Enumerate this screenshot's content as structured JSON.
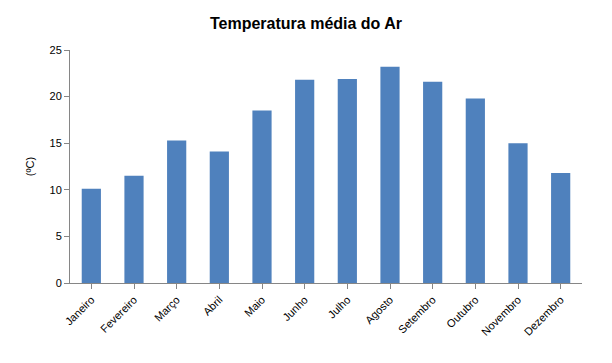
{
  "chart_data": {
    "type": "bar",
    "title": "Temperatura média do Ar",
    "y_label": "(ºC)",
    "categories": [
      "Janeiro",
      "Fevereiro",
      "Março",
      "Abril",
      "Maio",
      "Junho",
      "Julho",
      "Agosto",
      "Setembro",
      "Outubro",
      "Novembro",
      "Dezembro"
    ],
    "values": [
      10.1,
      11.5,
      15.3,
      14.1,
      18.5,
      21.8,
      21.9,
      23.2,
      21.6,
      19.8,
      15.0,
      11.8
    ],
    "color": "#4f81bd",
    "ylim": [
      0,
      25
    ],
    "yticks": [
      0,
      5,
      10,
      15,
      20,
      25
    ],
    "grid": false
  }
}
